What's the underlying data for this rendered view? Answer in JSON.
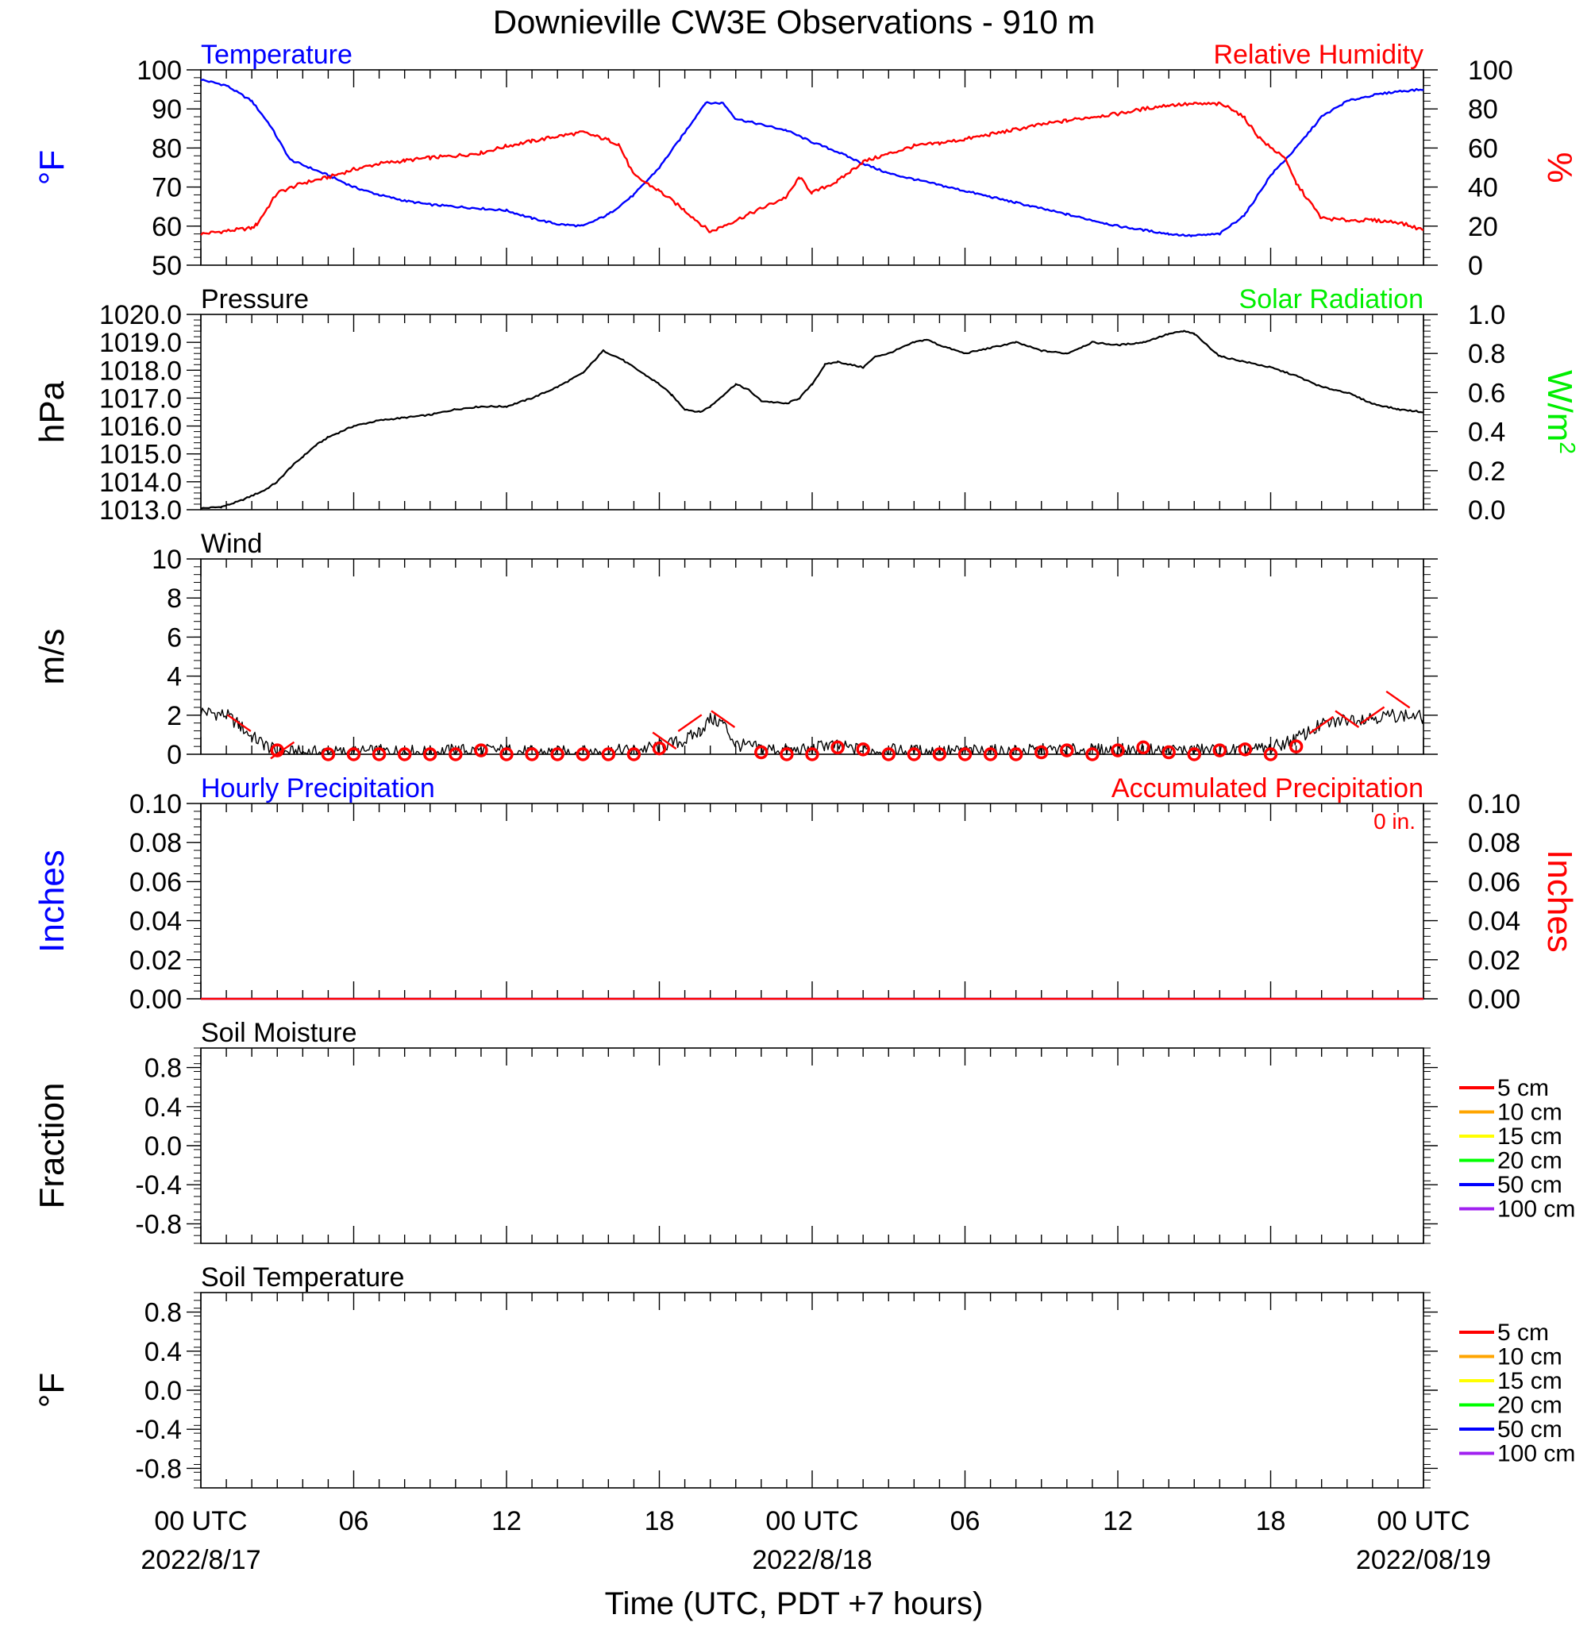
{
  "title": "Downieville CW3E Observations - 910 m",
  "xaxis": {
    "label": "Time (UTC, PDT +7 hours)",
    "range_hours": [
      0,
      48
    ],
    "ticks": [
      {
        "hour": 0,
        "label": "00 UTC",
        "date": "2022/8/17"
      },
      {
        "hour": 6,
        "label": "06"
      },
      {
        "hour": 12,
        "label": "12"
      },
      {
        "hour": 18,
        "label": "18"
      },
      {
        "hour": 24,
        "label": "00 UTC",
        "date": "2022/8/18"
      },
      {
        "hour": 30,
        "label": "06"
      },
      {
        "hour": 36,
        "label": "12"
      },
      {
        "hour": 42,
        "label": "18"
      },
      {
        "hour": 48,
        "label": "00 UTC",
        "date": "2022/08/19"
      }
    ]
  },
  "colors": {
    "temperature": "#0000ff",
    "humidity": "#ff0000",
    "pressure": "#000000",
    "solar": "#00ee00",
    "wind": "#000000",
    "wind_marker": "#ff0000",
    "hourly_precip": "#0000ff",
    "accum_precip": "#ff0000",
    "soil_depths": [
      "#ff0000",
      "#ffa500",
      "#ffff00",
      "#00ff00",
      "#0000ff",
      "#a020f0"
    ]
  },
  "chart_data": [
    {
      "id": "temp-rh",
      "type": "line",
      "title_left": "Temperature",
      "title_right": "Relative Humidity",
      "ylabel_left": "°F",
      "ylabel_right": "%",
      "ylim_left": [
        50,
        100
      ],
      "ylim_right": [
        0,
        100
      ],
      "yticks_left": [
        "100",
        "90",
        "80",
        "70",
        "60",
        "50"
      ],
      "yticks_right": [
        "100",
        "80",
        "60",
        "40",
        "20",
        "0"
      ],
      "series": [
        {
          "name": "Temperature",
          "axis": "left",
          "x": [
            0,
            1,
            2,
            2.7,
            3.5,
            5,
            6,
            7,
            8,
            9,
            10,
            11,
            12,
            13,
            14,
            15,
            16,
            17,
            18,
            19,
            19.8,
            20.5,
            21,
            22,
            23,
            24,
            25,
            26,
            27,
            28,
            29,
            30,
            31,
            32,
            33,
            34,
            35,
            36,
            37,
            38,
            38.9,
            40,
            41,
            42,
            43,
            44,
            45,
            46,
            47,
            48
          ],
          "y": [
            97.5,
            96,
            92,
            86,
            77,
            73,
            70,
            68,
            66.5,
            65.5,
            65,
            64.5,
            64,
            62,
            60.5,
            60,
            63,
            68,
            75,
            84,
            91.5,
            91.5,
            87.5,
            86,
            84.5,
            81.5,
            79,
            76,
            73.5,
            72,
            70.5,
            69,
            67.5,
            66,
            64.5,
            63,
            61.5,
            60,
            59,
            58,
            57.5,
            58,
            63,
            73,
            80,
            88,
            92,
            93.5,
            94.5,
            95
          ]
        },
        {
          "name": "Relative Humidity",
          "axis": "right",
          "x": [
            0,
            1,
            2,
            2.2,
            3,
            4,
            5,
            6,
            7,
            8,
            9,
            10,
            11,
            12,
            13,
            14,
            15,
            16,
            16.4,
            17,
            18,
            19,
            20,
            21,
            22,
            23,
            23.5,
            24,
            25,
            26,
            27,
            28,
            29,
            30,
            31,
            32,
            33,
            34,
            35,
            36,
            37,
            38,
            39,
            40,
            40.5,
            41,
            41.5,
            42,
            42.5,
            43,
            44,
            45,
            46,
            47,
            48
          ],
          "y": [
            16,
            17.5,
            19,
            21,
            37,
            42,
            45,
            49,
            52,
            53.5,
            55,
            56,
            57.5,
            61,
            63.5,
            66,
            68,
            64,
            62,
            46,
            38,
            28,
            17,
            23,
            29,
            35,
            45,
            37,
            43,
            53,
            57,
            61,
            62.5,
            64.5,
            67,
            69.5,
            72,
            74,
            76,
            77.5,
            80,
            82,
            82.5,
            82.5,
            80,
            75,
            66,
            60,
            56,
            42,
            24,
            23,
            23,
            22,
            18
          ]
        }
      ]
    },
    {
      "id": "pressure",
      "type": "line",
      "title_left": "Pressure",
      "title_right": "Solar Radiation",
      "ylabel_left": "hPa",
      "ylabel_right": "W/m",
      "ylabel_right_sup": "2",
      "ylim_left": [
        1013,
        1020
      ],
      "ylim_right": [
        0,
        1
      ],
      "yticks_left": [
        "1020.0",
        "1019.0",
        "1018.0",
        "1017.0",
        "1016.0",
        "1015.0",
        "1014.0",
        "1013.0"
      ],
      "yticks_right": [
        "1.0",
        "0.8",
        "0.6",
        "0.4",
        "0.2",
        "0.0"
      ],
      "series": [
        {
          "name": "Pressure",
          "axis": "left",
          "x": [
            0,
            0.8,
            1.5,
            2.5,
            3,
            3.5,
            4,
            4.5,
            5,
            6,
            7,
            8,
            9,
            10,
            11,
            12,
            13,
            14,
            15,
            15.4,
            15.8,
            16.5,
            17,
            18,
            18.5,
            19,
            19.6,
            20,
            20.5,
            21,
            21.5,
            22,
            23,
            23.5,
            24,
            24.5,
            25,
            25.5,
            26,
            26.5,
            27,
            28,
            28.5,
            29,
            30,
            31,
            32,
            33,
            34,
            35,
            36,
            37,
            38,
            38.6,
            39,
            40,
            41,
            42,
            43,
            44,
            45,
            46,
            47,
            48
          ],
          "y": [
            1013.05,
            1013.1,
            1013.3,
            1013.7,
            1014.0,
            1014.5,
            1014.9,
            1015.3,
            1015.6,
            1016.0,
            1016.2,
            1016.3,
            1016.4,
            1016.6,
            1016.7,
            1016.7,
            1017.0,
            1017.4,
            1017.9,
            1018.3,
            1018.7,
            1018.4,
            1018.1,
            1017.5,
            1017.1,
            1016.6,
            1016.5,
            1016.7,
            1017.1,
            1017.5,
            1017.3,
            1016.9,
            1016.8,
            1017.0,
            1017.5,
            1018.2,
            1018.3,
            1018.2,
            1018.1,
            1018.5,
            1018.6,
            1019.0,
            1019.1,
            1018.9,
            1018.6,
            1018.8,
            1019.0,
            1018.7,
            1018.6,
            1019.0,
            1018.9,
            1019.0,
            1019.3,
            1019.4,
            1019.3,
            1018.5,
            1018.3,
            1018.1,
            1017.8,
            1017.4,
            1017.2,
            1016.8,
            1016.6,
            1016.5
          ]
        }
      ]
    },
    {
      "id": "wind",
      "type": "line",
      "title_left": "Wind",
      "ylabel_left": "m/s",
      "ylim_left": [
        0,
        10
      ],
      "yticks_left": [
        "10",
        "8",
        "6",
        "4",
        "2",
        "0"
      ],
      "series": [
        {
          "name": "Wind",
          "axis": "left",
          "x": [
            0,
            1,
            1.5,
            2,
            2.5,
            3,
            4,
            5,
            6,
            7,
            8,
            9,
            10,
            11,
            12,
            13,
            14,
            15,
            16,
            17,
            18,
            19,
            19.6,
            20,
            20.5,
            21,
            22,
            23,
            24,
            24.5,
            25,
            26,
            27,
            28,
            29,
            30,
            31,
            32,
            33,
            34,
            35,
            36,
            37,
            38,
            39,
            40,
            41,
            42,
            43,
            44,
            45,
            46,
            47,
            48
          ],
          "y": [
            2.2,
            2.0,
            1.5,
            0.9,
            0.5,
            0.1,
            0.1,
            0.1,
            0.1,
            0.15,
            0.15,
            0.1,
            0.2,
            0.2,
            0.2,
            0.1,
            0.1,
            0.1,
            0.15,
            0.2,
            0.4,
            0.7,
            1.2,
            1.8,
            1.6,
            0.5,
            0.3,
            0.2,
            0.2,
            0.5,
            0.4,
            0.2,
            0.2,
            0.15,
            0.15,
            0.15,
            0.15,
            0.15,
            0.2,
            0.2,
            0.2,
            0.2,
            0.2,
            0.2,
            0.2,
            0.2,
            0.2,
            0.3,
            0.8,
            1.5,
            1.8,
            1.9,
            2.0,
            1.9
          ]
        },
        {
          "name": "Wind Markers",
          "axis": "left",
          "x": [
            3,
            5,
            6,
            7,
            8,
            9,
            10,
            11,
            12,
            13,
            14,
            15,
            16,
            17,
            18,
            22,
            23,
            24,
            25,
            26,
            27,
            28,
            29,
            30,
            31,
            32,
            33,
            34,
            35,
            36,
            37,
            38,
            39,
            40,
            41,
            42,
            43
          ],
          "y": [
            0.2,
            0.0,
            0.0,
            0.0,
            0.0,
            0.0,
            0.0,
            0.2,
            0.0,
            0.0,
            0.0,
            0.0,
            0.0,
            0.0,
            0.3,
            0.1,
            0.0,
            0.0,
            0.35,
            0.25,
            0.0,
            0.0,
            0.0,
            0.0,
            0.0,
            0.0,
            0.1,
            0.2,
            0.0,
            0.2,
            0.35,
            0.1,
            0.0,
            0.2,
            0.25,
            0.0,
            0.4
          ]
        },
        {
          "name": "Wind Barbs",
          "x": [
            1.5,
            3.2,
            18.2,
            19.2,
            20.5,
            44,
            45,
            46,
            47
          ],
          "y": [
            1.6,
            0.2,
            0.7,
            1.6,
            1.8,
            1.5,
            1.8,
            2.0,
            2.8
          ]
        }
      ]
    },
    {
      "id": "precip",
      "type": "line",
      "title_left": "Hourly Precipitation",
      "title_right": "Accumulated Precipitation",
      "annotation": "0 in.",
      "ylabel_left": "Inches",
      "ylabel_right": "Inches",
      "ylim_left": [
        0,
        0.1
      ],
      "ylim_right": [
        0,
        0.1
      ],
      "yticks_left": [
        "0.10",
        "0.08",
        "0.06",
        "0.04",
        "0.02",
        "0.00"
      ],
      "yticks_right": [
        "0.10",
        "0.08",
        "0.06",
        "0.04",
        "0.02",
        "0.00"
      ],
      "series": [
        {
          "name": "Hourly Precipitation",
          "axis": "left",
          "x": [
            0,
            48
          ],
          "y": [
            0,
            0
          ]
        },
        {
          "name": "Accumulated Precipitation",
          "axis": "right",
          "x": [
            0,
            48
          ],
          "y": [
            0,
            0
          ]
        }
      ]
    },
    {
      "id": "soil-moisture",
      "type": "line",
      "title_left": "Soil Moisture",
      "ylabel_left": "Fraction",
      "ylim_left": [
        -1,
        1
      ],
      "yticks_left": [
        "0.8",
        "0.4",
        "0.0",
        "-0.4",
        "-0.8"
      ],
      "legend": [
        "5 cm",
        "10 cm",
        "15 cm",
        "20 cm",
        "50 cm",
        "100 cm"
      ],
      "series": []
    },
    {
      "id": "soil-temperature",
      "type": "line",
      "title_left": "Soil Temperature",
      "ylabel_left": "°F",
      "ylim_left": [
        -1,
        1
      ],
      "yticks_left": [
        "0.8",
        "0.4",
        "0.0",
        "-0.4",
        "-0.8"
      ],
      "legend": [
        "5 cm",
        "10 cm",
        "15 cm",
        "20 cm",
        "50 cm",
        "100 cm"
      ],
      "series": []
    }
  ]
}
